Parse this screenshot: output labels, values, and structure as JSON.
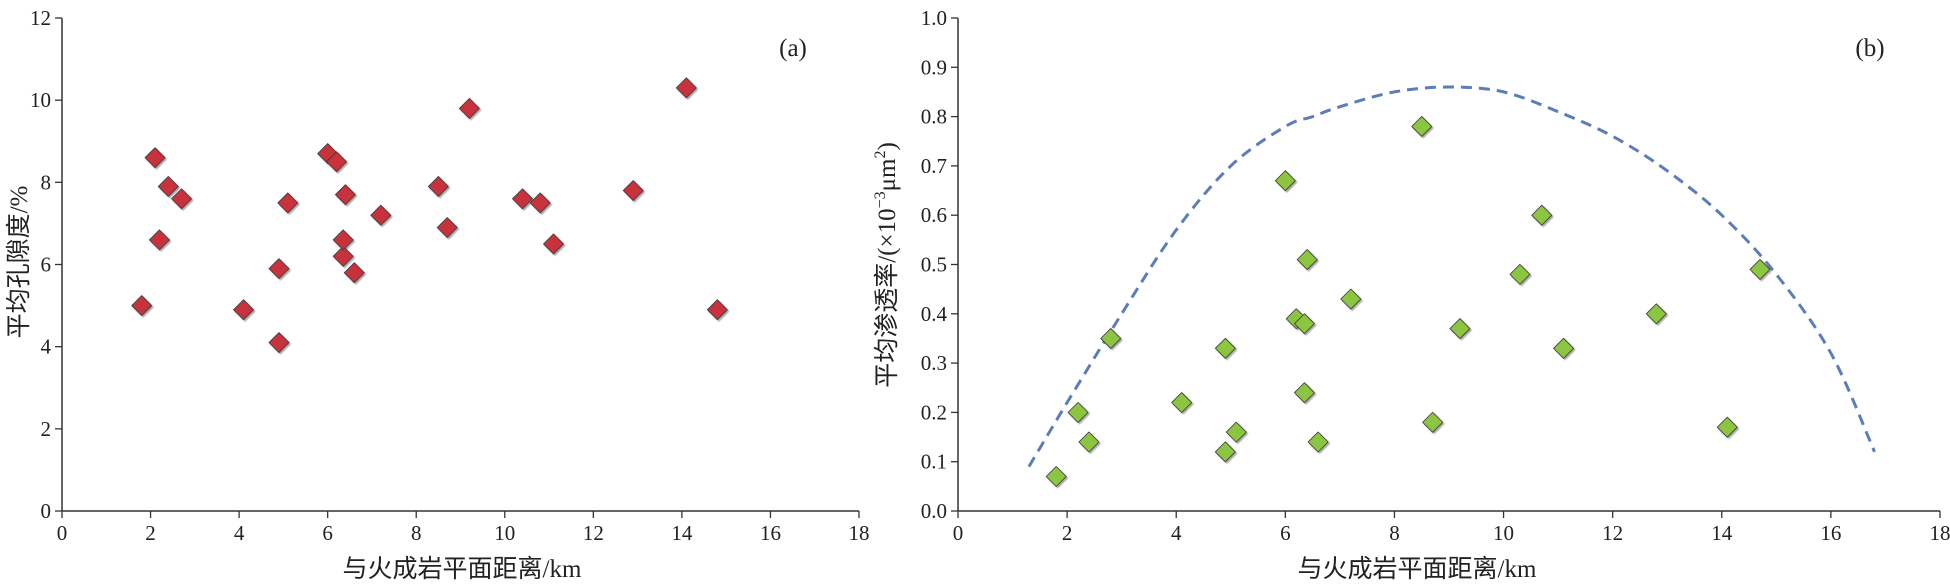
{
  "chart_data": [
    {
      "type": "scatter",
      "panel_label": "(a)",
      "xlabel": "与火成岩平面距离/km",
      "ylabel": "平均孔隙度/%",
      "xlim": [
        0,
        18
      ],
      "ylim": [
        0,
        12
      ],
      "x_ticks": [
        0,
        2,
        4,
        6,
        8,
        10,
        12,
        14,
        16,
        18
      ],
      "y_ticks": [
        0,
        2,
        4,
        6,
        8,
        10,
        12
      ],
      "y_tick_labels": [
        "0",
        "2",
        "4",
        "6",
        "8",
        "10",
        "12"
      ],
      "grid": false,
      "marker_color": "#c8323c",
      "marker_shape": "diamond",
      "points": [
        [
          1.8,
          5.0
        ],
        [
          2.1,
          8.6
        ],
        [
          2.2,
          6.6
        ],
        [
          2.4,
          7.9
        ],
        [
          2.7,
          7.6
        ],
        [
          4.1,
          4.9
        ],
        [
          4.9,
          4.1
        ],
        [
          4.9,
          5.9
        ],
        [
          5.1,
          7.5
        ],
        [
          6.0,
          8.7
        ],
        [
          6.2,
          8.5
        ],
        [
          6.35,
          6.2
        ],
        [
          6.35,
          6.6
        ],
        [
          6.4,
          7.7
        ],
        [
          6.6,
          5.8
        ],
        [
          7.2,
          7.2
        ],
        [
          8.5,
          7.9
        ],
        [
          8.7,
          6.9
        ],
        [
          9.2,
          9.8
        ],
        [
          10.4,
          7.6
        ],
        [
          10.8,
          7.5
        ],
        [
          11.1,
          6.5
        ],
        [
          12.9,
          7.8
        ],
        [
          14.1,
          10.3
        ],
        [
          14.8,
          4.9
        ]
      ]
    },
    {
      "type": "scatter",
      "panel_label": "(b)",
      "xlabel": "与火成岩平面距离/km",
      "ylabel_main": "平均渗透率/(×10",
      "ylabel_sup1": "−3",
      "ylabel_unit": "μm",
      "ylabel_sup2": "2",
      "ylabel_end": ")",
      "xlim": [
        0,
        18
      ],
      "ylim": [
        0,
        1.0
      ],
      "x_ticks": [
        0,
        2,
        4,
        6,
        8,
        10,
        12,
        14,
        16,
        18
      ],
      "y_ticks": [
        0,
        0.1,
        0.2,
        0.3,
        0.4,
        0.5,
        0.6,
        0.7,
        0.8,
        0.9,
        1.0
      ],
      "y_tick_labels": [
        "0.0",
        "0.1",
        "0.2",
        "0.3",
        "0.4",
        "0.5",
        "0.6",
        "0.7",
        "0.8",
        "0.9",
        "1.0"
      ],
      "grid": false,
      "marker_color": "#8cc63f",
      "marker_shape": "diamond",
      "points": [
        [
          1.8,
          0.07
        ],
        [
          2.2,
          0.2
        ],
        [
          2.4,
          0.14
        ],
        [
          2.8,
          0.35
        ],
        [
          4.1,
          0.22
        ],
        [
          4.9,
          0.12
        ],
        [
          4.9,
          0.33
        ],
        [
          5.1,
          0.16
        ],
        [
          6.0,
          0.67
        ],
        [
          6.2,
          0.39
        ],
        [
          6.35,
          0.38
        ],
        [
          6.35,
          0.24
        ],
        [
          6.4,
          0.51
        ],
        [
          6.6,
          0.14
        ],
        [
          7.2,
          0.43
        ],
        [
          8.5,
          0.78
        ],
        [
          8.7,
          0.18
        ],
        [
          9.2,
          0.37
        ],
        [
          10.3,
          0.48
        ],
        [
          10.7,
          0.6
        ],
        [
          11.1,
          0.33
        ],
        [
          12.8,
          0.4
        ],
        [
          14.1,
          0.17
        ],
        [
          14.7,
          0.49
        ]
      ],
      "envelope_curve": {
        "style": "dashed",
        "color": "#5b7db8",
        "points": [
          [
            1.3,
            0.09
          ],
          [
            2.0,
            0.22
          ],
          [
            3.0,
            0.4
          ],
          [
            4.0,
            0.57
          ],
          [
            5.0,
            0.7
          ],
          [
            6.0,
            0.78
          ],
          [
            6.5,
            0.8
          ],
          [
            7.0,
            0.82
          ],
          [
            8.0,
            0.85
          ],
          [
            9.0,
            0.86
          ],
          [
            10.0,
            0.85
          ],
          [
            11.0,
            0.81
          ],
          [
            12.0,
            0.76
          ],
          [
            13.0,
            0.69
          ],
          [
            14.0,
            0.6
          ],
          [
            15.0,
            0.48
          ],
          [
            16.0,
            0.32
          ],
          [
            16.8,
            0.12
          ]
        ]
      }
    }
  ]
}
